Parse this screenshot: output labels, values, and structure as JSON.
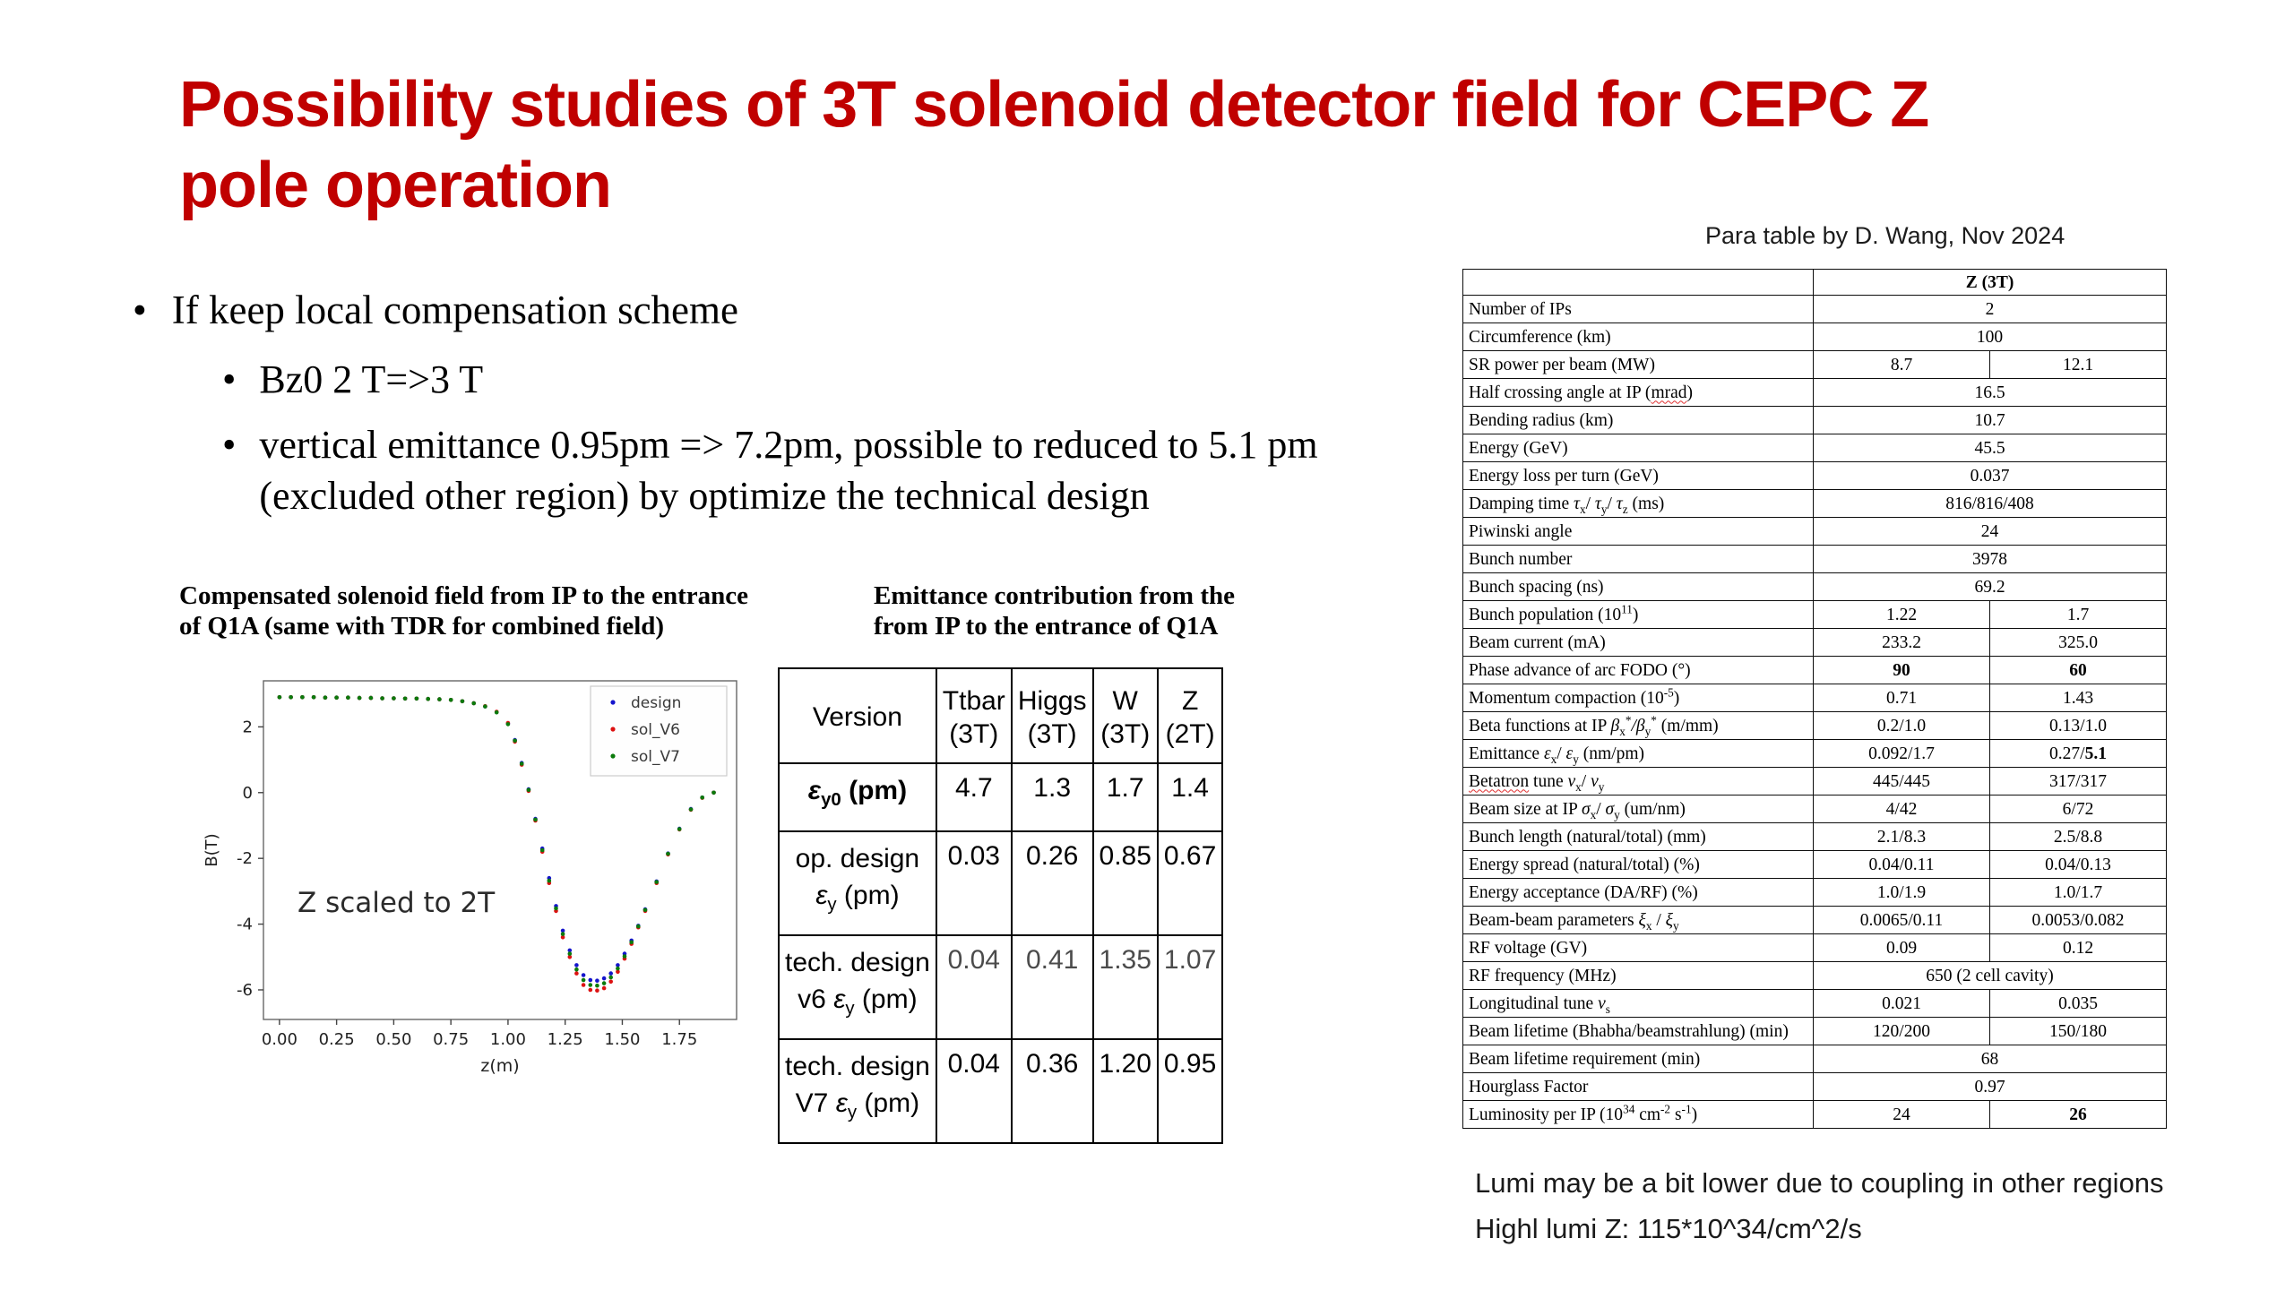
{
  "title": {
    "line1": "Possibility studies of 3T solenoid detector field for CEPC Z",
    "line2": "pole operation",
    "color": "#c00000"
  },
  "bullets": {
    "l1": "If keep local compensation scheme",
    "l2a": "Bz0 2 T=>3 T",
    "l2b": "vertical emittance 0.95pm => 7.2pm, possible to reduced to 5.1 pm (excluded other region) by optimize the technical design"
  },
  "chart_heading": {
    "line1": "Compensated solenoid field from IP to the entrance",
    "line2": "of Q1A (same with TDR for combined field)"
  },
  "emittance_heading": {
    "line1": "Emittance contribution from the",
    "line2": "from IP to the entrance of Q1A"
  },
  "chart_data": {
    "type": "scatter",
    "xlabel": "z(m)",
    "ylabel": "B(T)",
    "annotation": "Z scaled to 2T",
    "xlim": [
      -0.07,
      2.0
    ],
    "ylim": [
      -6.9,
      3.4
    ],
    "xticks": [
      "0.00",
      "0.25",
      "0.50",
      "0.75",
      "1.00",
      "1.25",
      "1.50",
      "1.75"
    ],
    "yticks": [
      2,
      0,
      -2,
      -4,
      -6
    ],
    "legend_position": "upper right",
    "x": [
      0,
      0.05,
      0.1,
      0.15,
      0.2,
      0.25,
      0.3,
      0.35,
      0.4,
      0.45,
      0.5,
      0.55,
      0.6,
      0.65,
      0.7,
      0.75,
      0.8,
      0.85,
      0.9,
      0.95,
      1.0,
      1.03,
      1.06,
      1.09,
      1.12,
      1.15,
      1.18,
      1.21,
      1.24,
      1.27,
      1.3,
      1.33,
      1.36,
      1.39,
      1.42,
      1.45,
      1.48,
      1.51,
      1.54,
      1.57,
      1.6,
      1.65,
      1.7,
      1.75,
      1.8,
      1.85,
      1.9
    ],
    "series": [
      {
        "name": "design",
        "color": "#1414cc",
        "values": [
          2.9,
          2.9,
          2.9,
          2.9,
          2.89,
          2.89,
          2.89,
          2.88,
          2.88,
          2.87,
          2.87,
          2.86,
          2.86,
          2.85,
          2.84,
          2.82,
          2.78,
          2.72,
          2.62,
          2.45,
          2.1,
          1.6,
          0.9,
          0.1,
          -0.8,
          -1.7,
          -2.6,
          -3.45,
          -4.2,
          -4.8,
          -5.25,
          -5.55,
          -5.7,
          -5.72,
          -5.65,
          -5.5,
          -5.25,
          -4.9,
          -4.5,
          -4.05,
          -3.55,
          -2.7,
          -1.85,
          -1.1,
          -0.5,
          -0.15,
          0
        ]
      },
      {
        "name": "sol_V6",
        "color": "#dd1111",
        "values": [
          2.9,
          2.9,
          2.9,
          2.9,
          2.89,
          2.89,
          2.89,
          2.88,
          2.88,
          2.87,
          2.87,
          2.86,
          2.86,
          2.85,
          2.84,
          2.82,
          2.78,
          2.72,
          2.63,
          2.46,
          2.12,
          1.55,
          0.85,
          0.05,
          -0.85,
          -1.8,
          -2.75,
          -3.6,
          -4.4,
          -5.0,
          -5.5,
          -5.85,
          -6.0,
          -6.02,
          -5.95,
          -5.75,
          -5.45,
          -5.05,
          -4.6,
          -4.1,
          -3.6,
          -2.75,
          -1.88,
          -1.12,
          -0.52,
          -0.16,
          0
        ]
      },
      {
        "name": "sol_V7",
        "color": "#0b7a0b",
        "values": [
          2.9,
          2.9,
          2.9,
          2.9,
          2.89,
          2.89,
          2.89,
          2.88,
          2.88,
          2.87,
          2.87,
          2.86,
          2.86,
          2.85,
          2.84,
          2.82,
          2.78,
          2.72,
          2.62,
          2.44,
          2.08,
          1.58,
          0.88,
          0.08,
          -0.82,
          -1.75,
          -2.68,
          -3.52,
          -4.3,
          -4.9,
          -5.38,
          -5.7,
          -5.85,
          -5.87,
          -5.8,
          -5.62,
          -5.35,
          -4.98,
          -4.55,
          -4.07,
          -3.57,
          -2.72,
          -1.86,
          -1.11,
          -0.51,
          -0.15,
          0
        ]
      }
    ]
  },
  "emittance_table": {
    "columns": [
      "Version",
      "Ttbar\n(3T)",
      "Higgs\n(3T)",
      "W\n(3T)",
      "Z\n(2T)"
    ],
    "rows": [
      {
        "label": "**//ε//_{y0} (pm)**",
        "values": [
          "4.7",
          "1.3",
          "1.7",
          "1.4"
        ],
        "muted": false
      },
      {
        "label": "op. design\n//ε//_{y} (pm)",
        "values": [
          "0.03",
          "0.26",
          "0.85",
          "0.67"
        ],
        "muted": false
      },
      {
        "label": "tech. design\nv6  //ε//_{y} (pm)",
        "values": [
          "0.04",
          "0.41",
          "1.35",
          "1.07"
        ],
        "muted": true
      },
      {
        "label": "tech. design\nV7  //ε//_{y} (pm)",
        "values": [
          "0.04",
          "0.36",
          "1.20",
          "0.95"
        ],
        "muted": false
      }
    ]
  },
  "para_table": {
    "caption": "Para table by D. Wang, Nov 2024",
    "rows": [
      {
        "label": "",
        "v": [
          "**Z (3T)**"
        ],
        "span": true,
        "header": true
      },
      {
        "label": "Number of IPs",
        "v": [
          "2"
        ],
        "span": true
      },
      {
        "label": "Circumference (km)",
        "v": [
          "100"
        ],
        "span": true
      },
      {
        "label": "SR  power per beam (MW)",
        "v": [
          "8.7",
          "12.1"
        ]
      },
      {
        "label": "Half crossing angle at IP (~~mrad~~)",
        "v": [
          "16.5"
        ],
        "span": true
      },
      {
        "label": "Bending radius (km)",
        "v": [
          "10.7"
        ],
        "span": true
      },
      {
        "label": "Energy (GeV)",
        "v": [
          "45.5"
        ],
        "span": true
      },
      {
        "label": "Energy loss per turn (GeV)",
        "v": [
          "0.037"
        ],
        "span": true
      },
      {
        "label": "Damping time //τ//_{x}/ //τ//_{y}/ //τ//_{z} (ms)",
        "v": [
          "816/816/408"
        ],
        "span": true
      },
      {
        "label": "Piwinski angle",
        "v": [
          "24"
        ],
        "span": true
      },
      {
        "label": "Bunch number",
        "v": [
          "3978"
        ],
        "span": true
      },
      {
        "label": "Bunch spacing (ns)",
        "v": [
          "69.2"
        ],
        "span": true
      },
      {
        "label": "Bunch population (10^{11})",
        "v": [
          "1.22",
          "1.7"
        ]
      },
      {
        "label": "Beam current (mA)",
        "v": [
          "233.2",
          "325.0"
        ]
      },
      {
        "label": "Phase advance of arc FODO (°)",
        "v": [
          "**90**",
          "**60**"
        ]
      },
      {
        "label": "Momentum compaction (10^{-5})",
        "v": [
          "0.71",
          "1.43"
        ]
      },
      {
        "label": "Beta functions at IP //β//_{x}^{*}///β//_{y}^{*} (m/mm)",
        "v": [
          "0.2/1.0",
          "0.13/1.0"
        ]
      },
      {
        "label": "Emittance //ε//_{x}/ //ε//_{y}  (nm/pm)",
        "v": [
          "0.092/1.7",
          "0.27/**5.1**"
        ]
      },
      {
        "label": "~~Betatron~~ tune //ν//_{x}/ //ν//_{y}",
        "v": [
          "445/445",
          "317/317"
        ]
      },
      {
        "label": "Beam size at IP //σ//_{x}/ //σ//_{y} (um/nm)",
        "v": [
          "4/42",
          "6/72"
        ]
      },
      {
        "label": "Bunch length (natural/total) (mm)",
        "v": [
          "2.1/8.3",
          "2.5/8.8"
        ]
      },
      {
        "label": "Energy spread (natural/total) (%)",
        "v": [
          "0.04/0.11",
          "0.04/0.13"
        ]
      },
      {
        "label": "Energy acceptance (DA/RF) (%)",
        "v": [
          "1.0/1.9",
          "1.0/1.7"
        ]
      },
      {
        "label": "Beam-beam parameters //ξ//_{x} / //ξ//_{y}",
        "v": [
          "0.0065/0.11",
          "0.0053/0.082"
        ]
      },
      {
        "label": "RF voltage (GV)",
        "v": [
          "0.09",
          "0.12"
        ]
      },
      {
        "label": "RF frequency (MHz)",
        "v": [
          "650 (2 cell cavity)"
        ],
        "span": true
      },
      {
        "label": "Longitudinal tune //ν//_{s}",
        "v": [
          "0.021",
          "0.035"
        ]
      },
      {
        "label": "Beam lifetime (Bhabha/beamstrahlung) (min)",
        "v": [
          "120/200",
          "150/180"
        ]
      },
      {
        "label": "Beam lifetime requirement (min)",
        "v": [
          "68"
        ],
        "span": true
      },
      {
        "label": "Hourglass Factor",
        "v": [
          "0.97"
        ],
        "span": true
      },
      {
        "label": "Luminosity per IP (10^{34} cm^{-2} s^{-1})",
        "v": [
          "24",
          "**26**"
        ]
      }
    ]
  },
  "notes": {
    "line1": "Lumi may be a bit lower due to coupling in other regions",
    "line2": "Highl lumi Z: 115*10^34/cm^2/s"
  }
}
